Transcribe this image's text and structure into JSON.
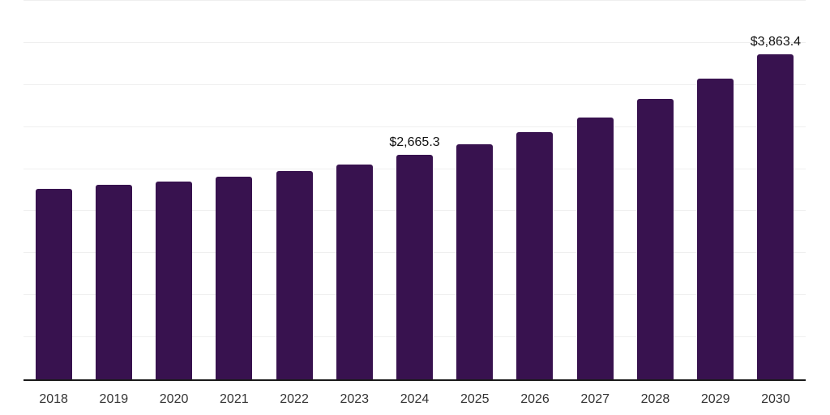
{
  "chart_data": {
    "type": "bar",
    "title": "",
    "xlabel": "",
    "ylabel": "",
    "categories": [
      "2018",
      "2019",
      "2020",
      "2021",
      "2022",
      "2023",
      "2024",
      "2025",
      "2026",
      "2027",
      "2028",
      "2029",
      "2030"
    ],
    "values": [
      2265,
      2310,
      2350,
      2405,
      2475,
      2555,
      2665.3,
      2790,
      2935,
      3115,
      3330,
      3575,
      3863.4
    ],
    "data_labels": [
      "",
      "",
      "",
      "",
      "",
      "",
      "$2,665.3",
      "",
      "",
      "",
      "",
      "",
      "$3,863.4"
    ],
    "ylim": [
      0,
      4500
    ],
    "gridline_step": 500,
    "grid": true,
    "legend": false,
    "legend_position": "none",
    "bar_color": "#38124F",
    "grid_color": "#efefef",
    "axis_color": "#1a1a1a",
    "tick_label_color": "#333333",
    "data_label_color": "#111111",
    "background_color": "#ffffff"
  }
}
